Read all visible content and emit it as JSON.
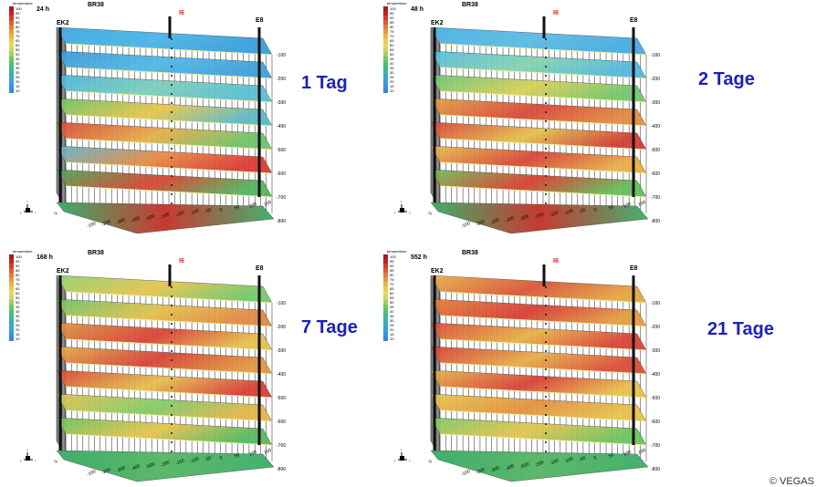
{
  "panels": [
    {
      "time_label": "24 h",
      "borehole": "BR38",
      "left_well": "EK2",
      "center_well": "I6",
      "right_well": "E8",
      "caption": "1 Tag",
      "layer_colors": [
        [
          "#3fa8e0",
          "#4ab3e5",
          "#3a9fdc"
        ],
        [
          "#3d9ad8",
          "#52b8e6",
          "#3fa2db"
        ],
        [
          "#4db4e0",
          "#7dcfb8",
          "#5ac0d2"
        ],
        [
          "#6cc46a",
          "#e9c54d",
          "#5fb9c9"
        ],
        [
          "#d9463a",
          "#e5b04a",
          "#6ec36a"
        ],
        [
          "#5eb6cf",
          "#e98a44",
          "#d93c34"
        ],
        [
          "#4aa95a",
          "#d8452f",
          "#55b563"
        ]
      ]
    },
    {
      "time_label": "48 h",
      "borehole": "BR38",
      "left_well": "EK2",
      "center_well": "I6",
      "right_well": "E8",
      "caption": "2 Tage",
      "layer_colors": [
        [
          "#48b1e2",
          "#5bbbe3",
          "#46ace0"
        ],
        [
          "#59bce0",
          "#87d3b0",
          "#55b9de"
        ],
        [
          "#6ac77b",
          "#d9cf59",
          "#74c86e"
        ],
        [
          "#e2a448",
          "#d9483a",
          "#e08d44"
        ],
        [
          "#d8433a",
          "#e3c24f",
          "#cf3f35"
        ],
        [
          "#e6c34f",
          "#d84638",
          "#e7b04a"
        ],
        [
          "#6cc45c",
          "#d9402f",
          "#64bf5d"
        ]
      ]
    },
    {
      "time_label": "168 h",
      "borehole": "BR38",
      "left_well": "EK2",
      "center_well": "I6",
      "right_well": "E8",
      "caption": "7 Tage",
      "layer_colors": [
        [
          "#8fd06e",
          "#e6c450",
          "#78c86c"
        ],
        [
          "#6cc46a",
          "#e4c04d",
          "#e18a44"
        ],
        [
          "#df9a45",
          "#d84338",
          "#e7c04d"
        ],
        [
          "#e4b14a",
          "#d4433a",
          "#e2973f"
        ],
        [
          "#d6473a",
          "#e6c04d",
          "#d9403a"
        ],
        [
          "#e6c34f",
          "#82cc6a",
          "#e5b64b"
        ],
        [
          "#6ac35e",
          "#e9c34e",
          "#58b95f"
        ]
      ]
    },
    {
      "time_label": "552 h",
      "borehole": "BR38",
      "left_well": "EK2",
      "center_well": "I6",
      "right_well": "E8",
      "caption": "21 Tage",
      "layer_colors": [
        [
          "#e7b34a",
          "#d9553a",
          "#e6a544"
        ],
        [
          "#e2853f",
          "#d73f36",
          "#e49e44"
        ],
        [
          "#da4c3a",
          "#e6b248",
          "#d9433a"
        ],
        [
          "#d6403a",
          "#e7ae48",
          "#da4d38"
        ],
        [
          "#e6b64b",
          "#d8433a",
          "#e8c04e"
        ],
        [
          "#e8c74f",
          "#e3913f",
          "#e6c24d"
        ],
        [
          "#7ec96a",
          "#e5c44f",
          "#6dc460"
        ]
      ]
    }
  ],
  "depth_ticks": [
    "-100",
    "-200",
    "-300",
    "-400",
    "-500",
    "-600",
    "-700",
    "-800"
  ],
  "front_ticks": [
    "0",
    "-100",
    "-200",
    "-300",
    "-400",
    "-500",
    "-200",
    "-150",
    "-100",
    "-50",
    "0",
    "50",
    "100",
    "150"
  ],
  "legend_title": "temperature",
  "legend_values": [
    "100",
    "95",
    "90",
    "85",
    "80",
    "75",
    "70",
    "65",
    "60",
    "55",
    "50",
    "45",
    "40",
    "35",
    "30",
    "25",
    "20",
    "15",
    "10"
  ],
  "legend_colors": [
    "#b01818",
    "#c82020",
    "#d63a2a",
    "#dd5a30",
    "#e27a38",
    "#e59a40",
    "#e8b448",
    "#ecc850",
    "#e8d658",
    "#c8d860",
    "#a0d060",
    "#6ec860",
    "#4ec070",
    "#40b890",
    "#38b0b0",
    "#38a8c8",
    "#36a0d8",
    "#3a92dc",
    "#3a84dc"
  ],
  "axis_marker_labels": [
    "x",
    "y",
    "z"
  ],
  "copyright": "© VEGAS",
  "colors": {
    "caption": "#1c22b8",
    "center_well": "#e02020",
    "well": "#111111"
  }
}
